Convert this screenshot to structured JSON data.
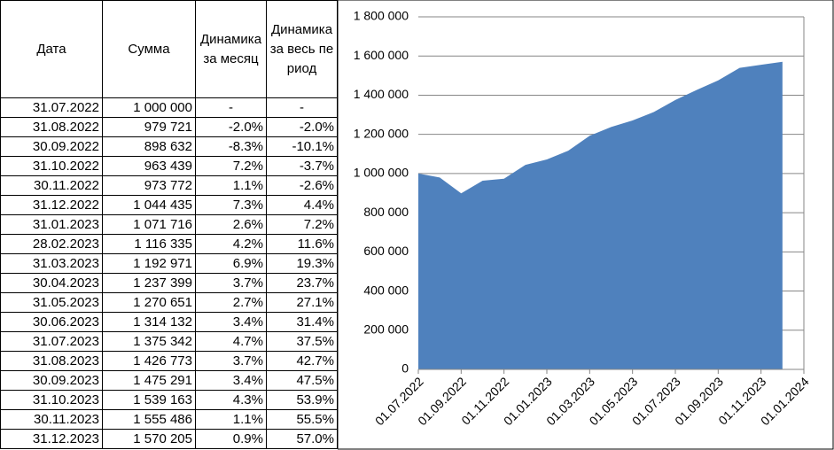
{
  "table": {
    "columns": [
      "Дата",
      "Сумма",
      "Динамика за месяц",
      "Динамика за весь период"
    ],
    "rows": [
      [
        "31.07.2022",
        "1 000 000",
        "-",
        "-"
      ],
      [
        "31.08.2022",
        "979 721",
        "-2.0%",
        "-2.0%"
      ],
      [
        "30.09.2022",
        "898 632",
        "-8.3%",
        "-10.1%"
      ],
      [
        "31.10.2022",
        "963 439",
        "7.2%",
        "-3.7%"
      ],
      [
        "30.11.2022",
        "973 772",
        "1.1%",
        "-2.6%"
      ],
      [
        "31.12.2022",
        "1 044 435",
        "7.3%",
        "4.4%"
      ],
      [
        "31.01.2023",
        "1 071 716",
        "2.6%",
        "7.2%"
      ],
      [
        "28.02.2023",
        "1 116 335",
        "4.2%",
        "11.6%"
      ],
      [
        "31.03.2023",
        "1 192 971",
        "6.9%",
        "19.3%"
      ],
      [
        "30.04.2023",
        "1 237 399",
        "3.7%",
        "23.7%"
      ],
      [
        "31.05.2023",
        "1 270 651",
        "2.7%",
        "27.1%"
      ],
      [
        "30.06.2023",
        "1 314 132",
        "3.4%",
        "31.4%"
      ],
      [
        "31.07.2023",
        "1 375 342",
        "4.7%",
        "37.5%"
      ],
      [
        "31.08.2023",
        "1 426 773",
        "3.7%",
        "42.7%"
      ],
      [
        "30.09.2023",
        "1 475 291",
        "3.4%",
        "47.5%"
      ],
      [
        "31.10.2023",
        "1 539 163",
        "4.3%",
        "53.9%"
      ],
      [
        "30.11.2023",
        "1 555 486",
        "1.1%",
        "55.5%"
      ],
      [
        "31.12.2023",
        "1 570 205",
        "0.9%",
        "57.0%"
      ]
    ]
  },
  "chart_data": {
    "type": "area",
    "color": "#4f81bd",
    "grid": true,
    "x": [
      "31.07.2022",
      "31.08.2022",
      "30.09.2022",
      "31.10.2022",
      "30.11.2022",
      "31.12.2022",
      "31.01.2023",
      "28.02.2023",
      "31.03.2023",
      "30.04.2023",
      "31.05.2023",
      "30.06.2023",
      "31.07.2023",
      "31.08.2023",
      "30.09.2023",
      "31.10.2023",
      "30.11.2023",
      "31.12.2023"
    ],
    "values": [
      1000000,
      979721,
      898632,
      963439,
      973772,
      1044435,
      1071716,
      1116335,
      1192971,
      1237399,
      1270651,
      1314132,
      1375342,
      1426773,
      1475291,
      1539163,
      1555486,
      1570205
    ],
    "xlim": [
      "01.07.2022",
      "01.01.2024"
    ],
    "xticks": [
      "01.07.2022",
      "01.09.2022",
      "01.11.2022",
      "01.01.2023",
      "01.03.2023",
      "01.05.2023",
      "01.07.2023",
      "01.09.2023",
      "01.11.2023",
      "01.01.2024"
    ],
    "ylim": [
      0,
      1800000
    ],
    "yticks": [
      0,
      {
        "value": 200000,
        "label": "200 000"
      },
      {
        "value": 400000,
        "label": "400 000"
      },
      {
        "value": 600000,
        "label": "600 000"
      },
      {
        "value": 800000,
        "label": "800 000"
      },
      {
        "value": 1000000,
        "label": "1 000 000"
      },
      {
        "value": 1200000,
        "label": "1 200 000"
      },
      {
        "value": 1400000,
        "label": "1 400 000"
      },
      {
        "value": 1600000,
        "label": "1 600 000"
      },
      {
        "value": 1800000,
        "label": "1 800 000"
      }
    ]
  }
}
